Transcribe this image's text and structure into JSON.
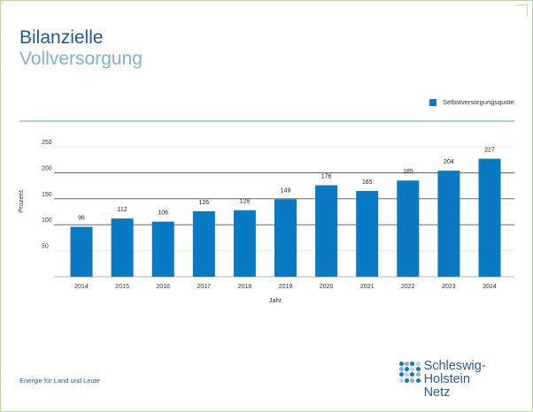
{
  "title": {
    "line1": "Bilanzielle",
    "line2": "Vollversorgung"
  },
  "colors": {
    "bar": "#0a79c4",
    "axis_line": "#5aa1ad",
    "title_dark": "#1a5b94",
    "title_light": "#7fb0d6"
  },
  "chart_data": {
    "type": "bar",
    "categories": [
      "2014",
      "2015",
      "2016",
      "2017",
      "2018",
      "2019",
      "2020",
      "2021",
      "2022",
      "2023",
      "2024"
    ],
    "series": [
      {
        "name": "Selbstversorgungsquote",
        "values": [
          96,
          112,
          106,
          126,
          128,
          149,
          176,
          165,
          185,
          204,
          227
        ]
      }
    ],
    "xlabel": "Jahr",
    "ylabel": "Prozent",
    "yticks": [
      50,
      100,
      150,
      200,
      250
    ],
    "ylim": [
      0,
      250
    ],
    "legend_position": "top-right"
  },
  "footer": {
    "tagline": "Energie für Land und Leute"
  },
  "logo": {
    "line1": "Schleswig-Holstein",
    "line2": "Netz"
  }
}
